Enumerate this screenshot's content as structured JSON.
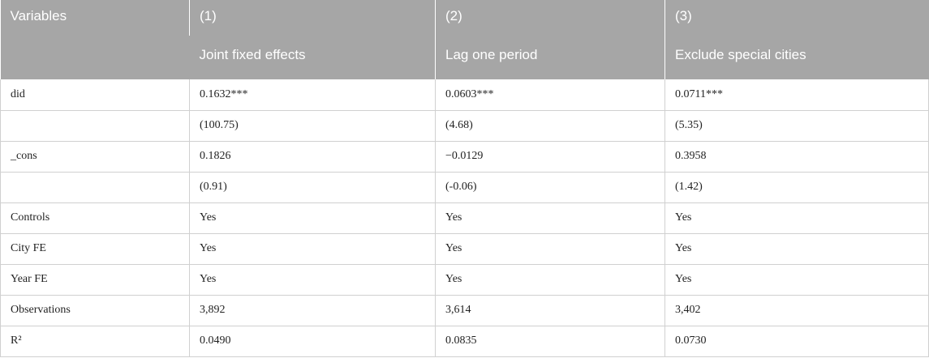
{
  "header": {
    "variables_label": "Variables",
    "columns": [
      {
        "number": "(1)",
        "label": "Joint fixed effects"
      },
      {
        "number": "(2)",
        "label": "Lag one period"
      },
      {
        "number": "(3)",
        "label": "Exclude special cities"
      }
    ]
  },
  "rows": [
    {
      "label": "did",
      "values": [
        "0.1632***",
        "0.0603***",
        "0.0711***"
      ]
    },
    {
      "label": "",
      "values": [
        "(100.75)",
        "(4.68)",
        "(5.35)"
      ]
    },
    {
      "label": "_cons",
      "values": [
        "0.1826",
        "−0.0129",
        "0.3958"
      ]
    },
    {
      "label": "",
      "values": [
        "(0.91)",
        "(-0.06)",
        "(1.42)"
      ]
    },
    {
      "label": "Controls",
      "values": [
        "Yes",
        "Yes",
        "Yes"
      ]
    },
    {
      "label": "City FE",
      "values": [
        "Yes",
        "Yes",
        "Yes"
      ]
    },
    {
      "label": "Year FE",
      "values": [
        "Yes",
        "Yes",
        "Yes"
      ]
    },
    {
      "label": "Observations",
      "values": [
        "3,892",
        "3,614",
        "3,402"
      ]
    },
    {
      "label": "R²",
      "values": [
        "0.0490",
        "0.0835",
        "0.0730"
      ]
    }
  ]
}
